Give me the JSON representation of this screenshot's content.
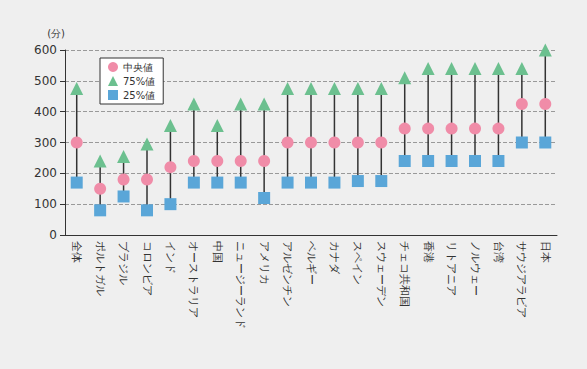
{
  "chart_data": {
    "type": "scatter",
    "y_label": "(分)",
    "categories": [
      "全体",
      "ポルトガル",
      "ブラジル",
      "コロンビア",
      "インド",
      "オーストラリア",
      "中国",
      "ニュージーランド",
      "アメリカ",
      "アルゼンチン",
      "ベルギー",
      "カナダ",
      "スペイン",
      "スウェーデン",
      "チェコ共和国",
      "香港",
      "リトアニア",
      "ノルウェー",
      "台湾",
      "サウジアラビア",
      "日本"
    ],
    "series": [
      {
        "name": "中央値",
        "color": "#f08ca8",
        "marker": "circle",
        "values": [
          300,
          150,
          180,
          180,
          220,
          240,
          240,
          240,
          240,
          300,
          300,
          300,
          300,
          300,
          345,
          345,
          345,
          345,
          345,
          425,
          425
        ]
      },
      {
        "name": "75%値",
        "color": "#6cc08f",
        "marker": "triangle",
        "values": [
          475,
          240,
          255,
          295,
          355,
          425,
          355,
          425,
          425,
          475,
          475,
          475,
          475,
          475,
          510,
          540,
          540,
          540,
          540,
          540,
          600
        ]
      },
      {
        "name": "25%値",
        "color": "#5aa6d8",
        "marker": "square",
        "values": [
          170,
          80,
          125,
          80,
          100,
          170,
          170,
          170,
          120,
          170,
          170,
          170,
          175,
          175,
          240,
          240,
          240,
          240,
          240,
          300,
          300
        ]
      }
    ],
    "ylim": [
      0,
      600
    ],
    "yticks": [
      0,
      100,
      200,
      300,
      400,
      500,
      600
    ],
    "grid": true,
    "legend": "top-left"
  }
}
